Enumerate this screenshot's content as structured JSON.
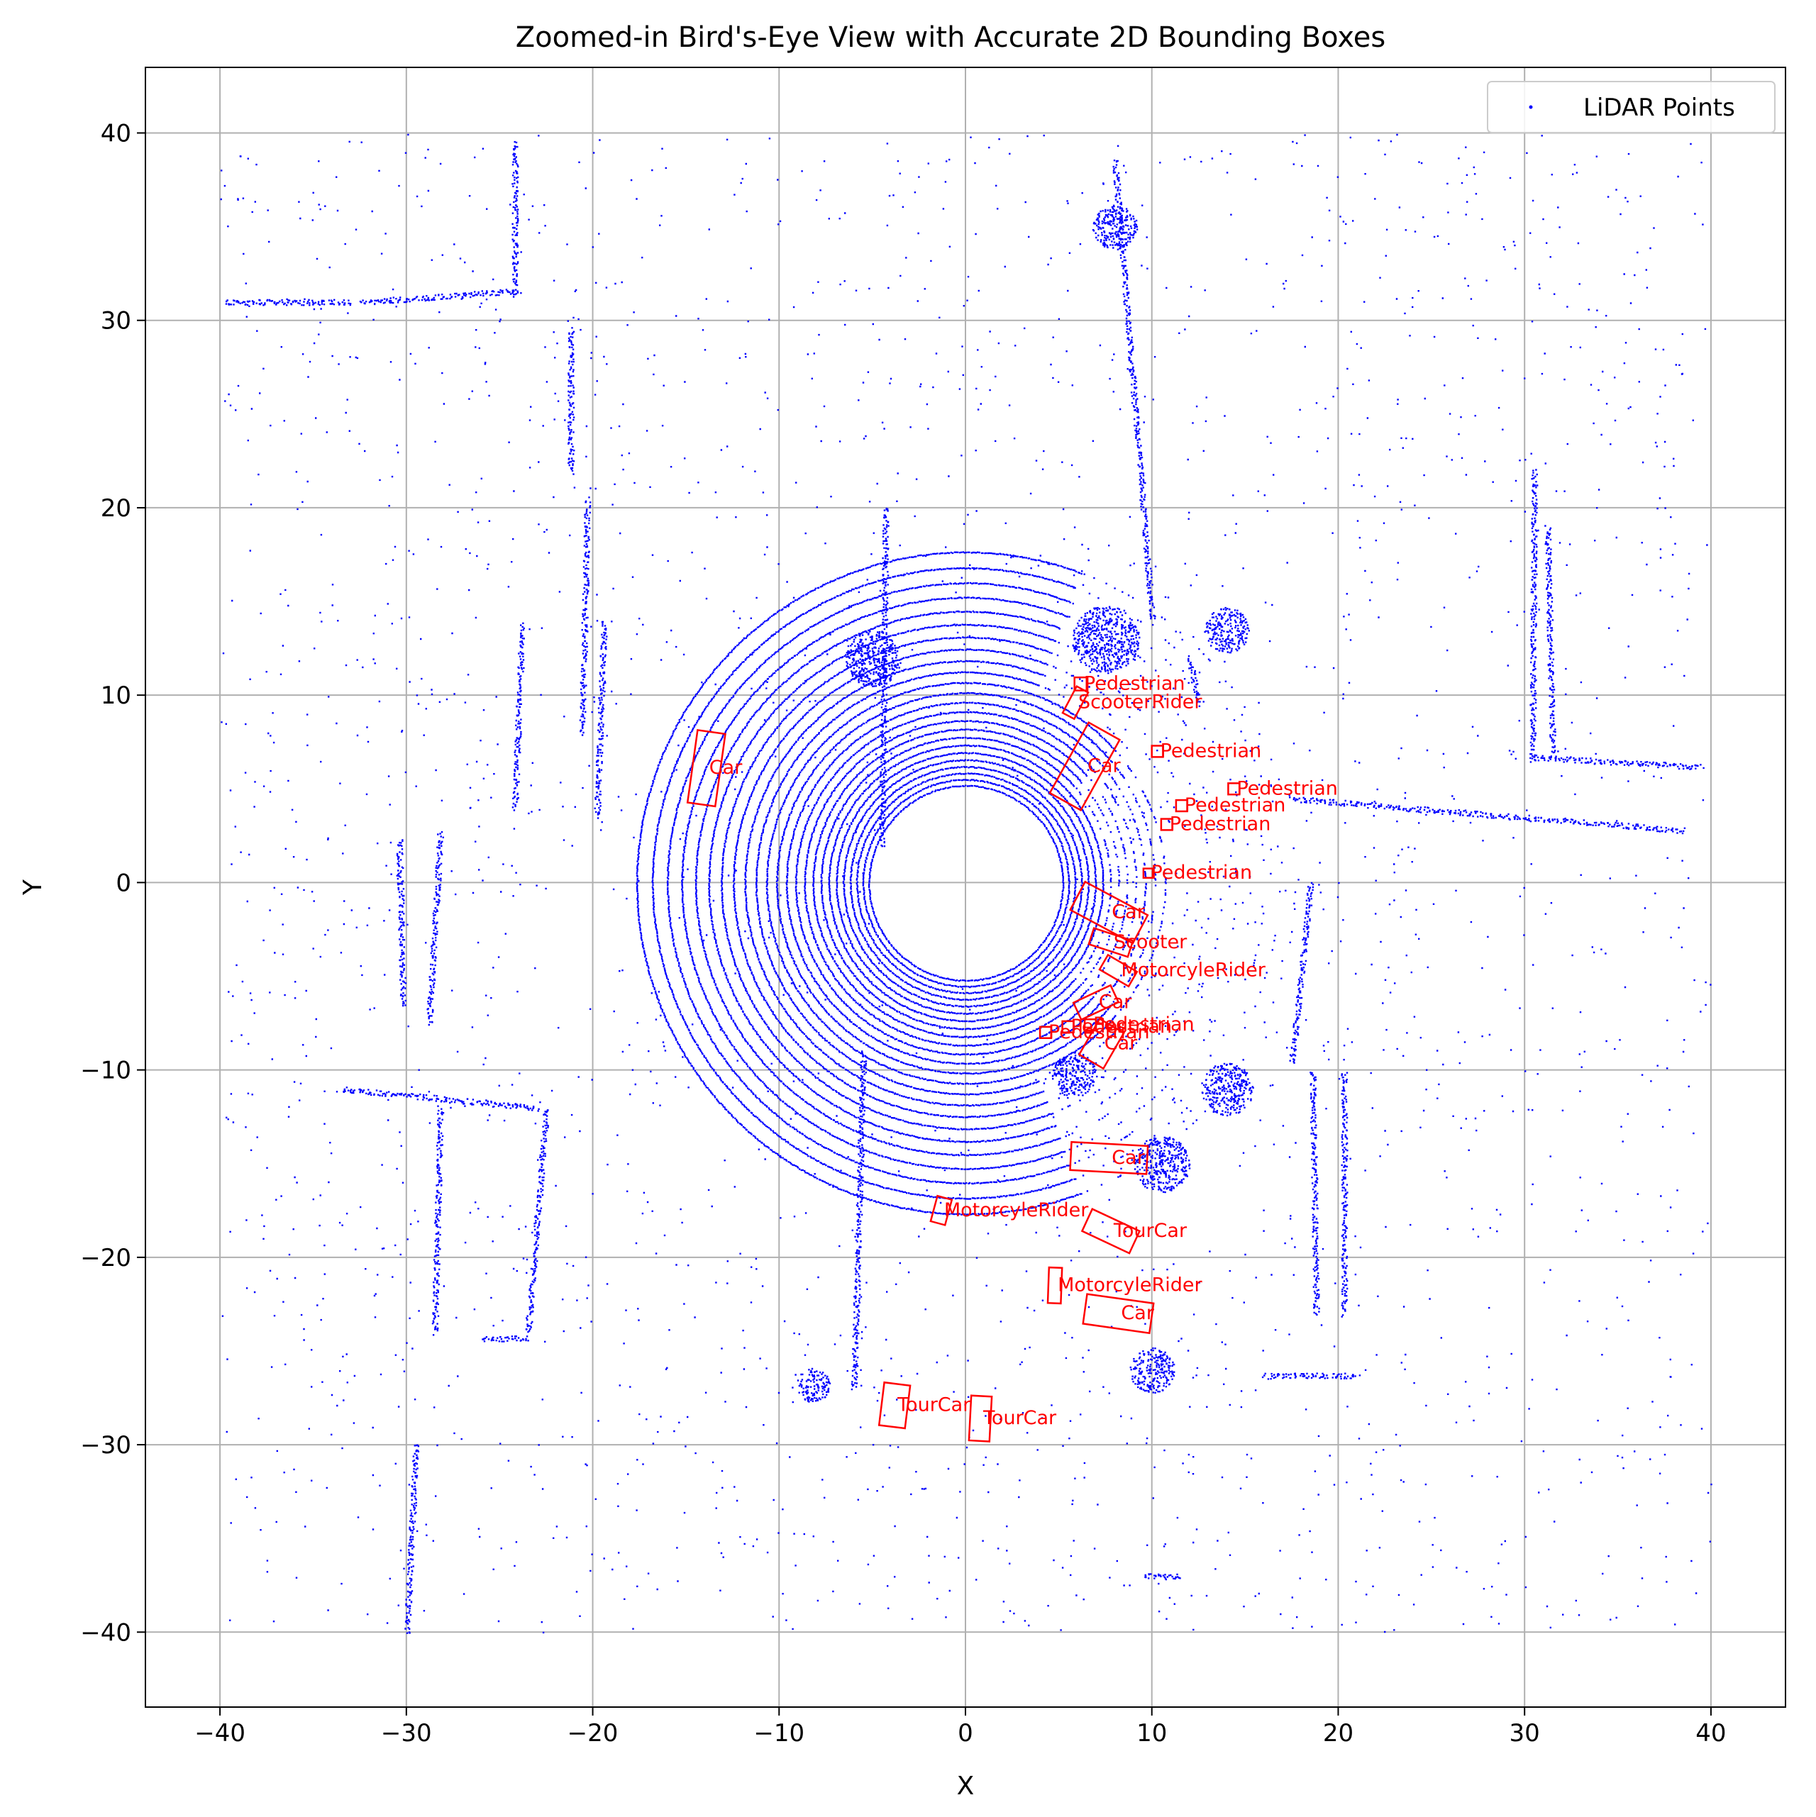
{
  "chart_data": {
    "type": "scatter",
    "title": "Zoomed-in Bird's-Eye View with Accurate 2D Bounding Boxes",
    "xlabel": "X",
    "ylabel": "Y",
    "xlim": [
      -44,
      44
    ],
    "ylim": [
      -44,
      43.5
    ],
    "grid": true,
    "x_ticks": [
      -40,
      -30,
      -20,
      -10,
      0,
      10,
      20,
      30,
      40
    ],
    "y_ticks": [
      -40,
      -30,
      -20,
      -10,
      0,
      10,
      20,
      30,
      40
    ],
    "x_tick_labels": [
      "−40",
      "−30",
      "−20",
      "−10",
      "0",
      "10",
      "20",
      "30",
      "40"
    ],
    "y_tick_labels": [
      "−40",
      "−30",
      "−20",
      "−10",
      "0",
      "10",
      "20",
      "30",
      "40"
    ],
    "legend": {
      "position": "top-right",
      "entries": [
        "LiDAR Points"
      ]
    },
    "colors": {
      "points": "#0000ff",
      "boxes": "#ff0000",
      "grid": "#b0b0b0"
    },
    "series": [
      {
        "name": "LiDAR Points",
        "ring_center": [
          0,
          0
        ],
        "ring_radius_min": 5.2,
        "ring_radius_max": 18,
        "structures": [
          {
            "kind": "line",
            "from": [
              -39.8,
              31
            ],
            "to": [
              -33,
              31
            ]
          },
          {
            "kind": "line",
            "from": [
              -32.5,
              31
            ],
            "to": [
              -24,
              31.6
            ]
          },
          {
            "kind": "line",
            "from": [
              -24.2,
              31.4
            ],
            "to": [
              -24.2,
              39.5
            ]
          },
          {
            "kind": "line",
            "from": [
              -28.8,
              -7.5
            ],
            "to": [
              -28.2,
              2.7
            ]
          },
          {
            "kind": "line",
            "from": [
              -30.2,
              -6.5
            ],
            "to": [
              -30.4,
              2.3
            ]
          },
          {
            "kind": "line",
            "from": [
              -33.5,
              -11
            ],
            "to": [
              -23,
              -12
            ]
          },
          {
            "kind": "line",
            "from": [
              -28.5,
              -24
            ],
            "to": [
              -28.2,
              -12
            ]
          },
          {
            "kind": "line",
            "from": [
              -23.5,
              -24
            ],
            "to": [
              -22.5,
              -12
            ]
          },
          {
            "kind": "line",
            "from": [
              -24.2,
              4
            ],
            "to": [
              -23.8,
              13.8
            ]
          },
          {
            "kind": "line",
            "from": [
              -19.8,
              3.5
            ],
            "to": [
              -19.4,
              14
            ]
          },
          {
            "kind": "line",
            "from": [
              -20.6,
              8
            ],
            "to": [
              -20.3,
              20.5
            ]
          },
          {
            "kind": "line",
            "from": [
              -21.2,
              22
            ],
            "to": [
              -21.2,
              29.5
            ]
          },
          {
            "kind": "line",
            "from": [
              -30,
              -40
            ],
            "to": [
              -29.5,
              -30
            ]
          },
          {
            "kind": "line",
            "from": [
              18.8,
              -23
            ],
            "to": [
              18.6,
              -10
            ]
          },
          {
            "kind": "line",
            "from": [
              20.3,
              -23
            ],
            "to": [
              20.3,
              -10
            ]
          },
          {
            "kind": "line",
            "from": [
              17.5,
              -9.5
            ],
            "to": [
              18.5,
              0
            ]
          },
          {
            "kind": "line",
            "from": [
              30.4,
              6.5
            ],
            "to": [
              30.5,
              22
            ]
          },
          {
            "kind": "line",
            "from": [
              31.5,
              7
            ],
            "to": [
              31.2,
              19
            ]
          },
          {
            "kind": "line",
            "from": [
              30.5,
              6.7
            ],
            "to": [
              39.5,
              6.2
            ]
          },
          {
            "kind": "line",
            "from": [
              -4.5,
              2
            ],
            "to": [
              -4.3,
              20
            ]
          },
          {
            "kind": "line",
            "from": [
              -6,
              -27
            ],
            "to": [
              -5.5,
              -9
            ]
          },
          {
            "kind": "line",
            "from": [
              8,
              38.5
            ],
            "to": [
              10,
              14
            ]
          },
          {
            "kind": "line",
            "from": [
              12.5,
              9.5
            ],
            "to": [
              12,
              12
            ]
          },
          {
            "kind": "line",
            "from": [
              17.5,
              4.5
            ],
            "to": [
              38.5,
              2.8
            ]
          },
          {
            "kind": "line",
            "from": [
              16,
              -26.3
            ],
            "to": [
              21,
              -26.3
            ]
          },
          {
            "kind": "line",
            "from": [
              9.5,
              -37
            ],
            "to": [
              11.5,
              -37
            ]
          },
          {
            "kind": "line",
            "from": [
              -26,
              -24.3
            ],
            "to": [
              -23.5,
              -24.3
            ]
          },
          {
            "kind": "cluster",
            "center": [
              -5,
              12
            ],
            "radius": 1.5
          },
          {
            "kind": "cluster",
            "center": [
              7.5,
              13
            ],
            "radius": 1.8
          },
          {
            "kind": "cluster",
            "center": [
              5.8,
              -10.2
            ],
            "radius": 1.2
          },
          {
            "kind": "cluster",
            "center": [
              10.5,
              -15
            ],
            "radius": 1.5
          },
          {
            "kind": "cluster",
            "center": [
              -8.2,
              -26.8
            ],
            "radius": 0.9
          },
          {
            "kind": "cluster",
            "center": [
              10,
              -26
            ],
            "radius": 1.2
          },
          {
            "kind": "cluster",
            "center": [
              14,
              -11
            ],
            "radius": 1.4
          },
          {
            "kind": "cluster",
            "center": [
              8,
              35
            ],
            "radius": 1.2
          },
          {
            "kind": "cluster",
            "center": [
              14,
              13.5
            ],
            "radius": 1.2
          }
        ]
      }
    ],
    "boxes": [
      {
        "label": "Car",
        "center": [
          -13.9,
          6.1
        ],
        "length": 3.9,
        "width": 1.5,
        "angle_deg": 82
      },
      {
        "label": "Car",
        "center": [
          6.4,
          6.2
        ],
        "length": 4.3,
        "width": 1.9,
        "angle_deg": 61
      },
      {
        "label": "Pedestrian",
        "center": [
          6.2,
          10.6
        ],
        "length": 0.7,
        "width": 0.7,
        "angle_deg": 0
      },
      {
        "label": "ScooterRider",
        "center": [
          5.9,
          9.6
        ],
        "length": 1.6,
        "width": 0.7,
        "angle_deg": 62
      },
      {
        "label": "Pedestrian",
        "center": [
          10.3,
          7.0
        ],
        "length": 0.6,
        "width": 0.6,
        "angle_deg": 0
      },
      {
        "label": "Pedestrian",
        "center": [
          14.4,
          5.0
        ],
        "length": 0.6,
        "width": 0.6,
        "angle_deg": 0
      },
      {
        "label": "Pedestrian",
        "center": [
          11.6,
          4.1
        ],
        "length": 0.6,
        "width": 0.6,
        "angle_deg": 0
      },
      {
        "label": "Pedestrian",
        "center": [
          10.8,
          3.1
        ],
        "length": 0.6,
        "width": 0.6,
        "angle_deg": 0
      },
      {
        "label": "Pedestrian",
        "center": [
          9.8,
          0.5
        ],
        "length": 0.5,
        "width": 0.5,
        "angle_deg": 0
      },
      {
        "label": "Car",
        "center": [
          7.7,
          -1.6
        ],
        "length": 3.8,
        "width": 1.7,
        "angle_deg": -28
      },
      {
        "label": "Scooter",
        "center": [
          7.8,
          -3.2
        ],
        "length": 2.2,
        "width": 0.9,
        "angle_deg": -18
      },
      {
        "label": "MotorcyleRider",
        "center": [
          8.2,
          -4.7
        ],
        "length": 1.8,
        "width": 0.9,
        "angle_deg": -30
      },
      {
        "label": "Car",
        "center": [
          7.0,
          -6.4
        ],
        "length": 2.2,
        "width": 1.0,
        "angle_deg": 25
      },
      {
        "label": "Pedestrian",
        "center": [
          4.3,
          -8.0
        ],
        "length": 0.6,
        "width": 0.6,
        "angle_deg": 0
      },
      {
        "label": "Pedestrian",
        "center": [
          5.5,
          -7.7
        ],
        "length": 0.6,
        "width": 0.6,
        "angle_deg": 0
      },
      {
        "label": "Pedestrian",
        "center": [
          6.7,
          -7.6
        ],
        "length": 0.6,
        "width": 0.6,
        "angle_deg": 0
      },
      {
        "label": "Car",
        "center": [
          7.3,
          -8.6
        ],
        "length": 2.2,
        "width": 1.5,
        "angle_deg": 60
      },
      {
        "label": "Car",
        "center": [
          7.7,
          -14.7
        ],
        "length": 4.1,
        "width": 1.5,
        "angle_deg": -3
      },
      {
        "label": "MotorcyleRider",
        "center": [
          -1.3,
          -17.5
        ],
        "length": 1.4,
        "width": 0.8,
        "angle_deg": 75
      },
      {
        "label": "TourCar",
        "center": [
          7.8,
          -18.6
        ],
        "length": 2.8,
        "width": 1.3,
        "angle_deg": -25
      },
      {
        "label": "MotorcyleRider",
        "center": [
          4.8,
          -21.5
        ],
        "length": 1.9,
        "width": 0.7,
        "angle_deg": 88
      },
      {
        "label": "Car",
        "center": [
          8.2,
          -23.0
        ],
        "length": 3.6,
        "width": 1.6,
        "angle_deg": -8
      },
      {
        "label": "TourCar",
        "center": [
          -3.8,
          -27.9
        ],
        "length": 2.3,
        "width": 1.4,
        "angle_deg": 83
      },
      {
        "label": "TourCar",
        "center": [
          0.8,
          -28.6
        ],
        "length": 2.4,
        "width": 1.1,
        "angle_deg": 87
      }
    ]
  }
}
